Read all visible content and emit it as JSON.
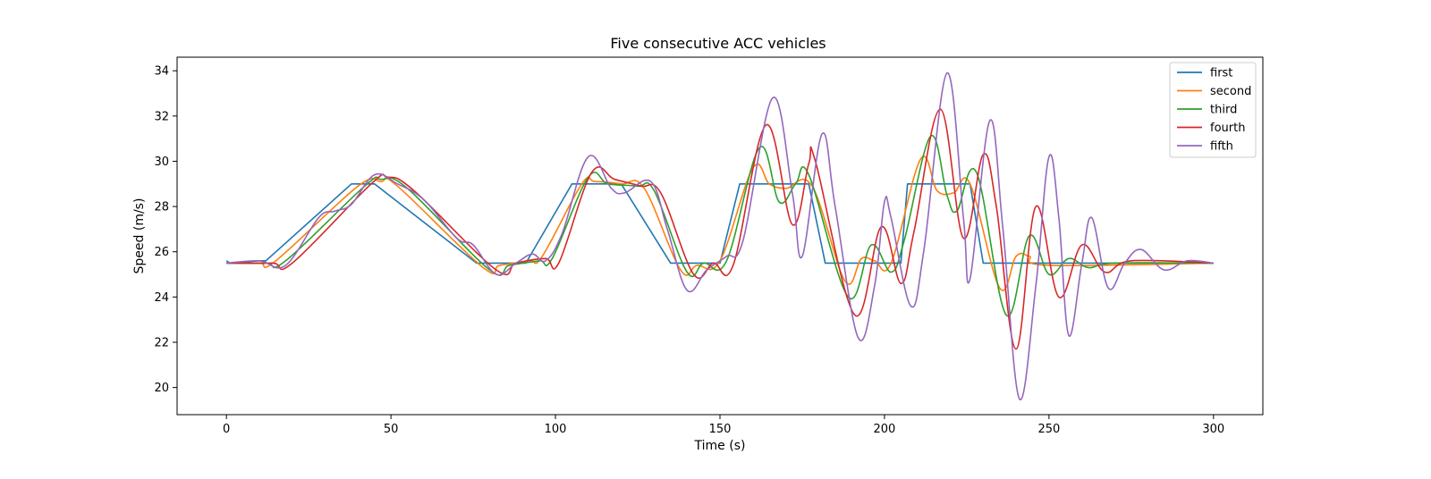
{
  "chart_data": {
    "type": "line",
    "title": "Five consecutive ACC vehicles",
    "xlabel": "Time (s)",
    "ylabel": "Speed (m/s)",
    "xlim": [
      -15,
      315
    ],
    "ylim": [
      18.8,
      34.6
    ],
    "xticks": [
      0,
      50,
      100,
      150,
      200,
      250,
      300
    ],
    "yticks": [
      20,
      22,
      24,
      26,
      28,
      30,
      32,
      34
    ],
    "grid": false,
    "legend_position": "top-right",
    "series": [
      {
        "name": "first",
        "color": "#1f77b4",
        "points": [
          [
            0,
            25.6
          ],
          [
            1,
            25.5
          ],
          [
            10,
            25.6
          ],
          [
            12,
            25.6
          ],
          [
            38,
            29
          ],
          [
            45,
            29
          ],
          [
            76,
            25.5
          ],
          [
            78,
            25.5
          ],
          [
            91,
            25.5
          ],
          [
            105,
            29
          ],
          [
            120,
            29
          ],
          [
            135,
            25.5
          ],
          [
            150,
            25.5
          ],
          [
            156,
            29
          ],
          [
            177,
            29
          ],
          [
            182,
            25.5
          ],
          [
            205,
            25.5
          ],
          [
            207,
            29
          ],
          [
            226,
            29
          ],
          [
            230,
            25.5
          ],
          [
            300,
            25.5
          ]
        ]
      },
      {
        "name": "second",
        "color": "#ff7f0e",
        "points": [
          [
            0,
            25.5
          ],
          [
            10,
            25.5
          ],
          [
            15,
            25.6
          ],
          [
            40,
            28.9
          ],
          [
            47,
            29.1
          ],
          [
            52,
            28.9
          ],
          [
            78,
            25.3
          ],
          [
            83,
            25.4
          ],
          [
            92,
            25.6
          ],
          [
            96,
            25.8
          ],
          [
            108,
            29
          ],
          [
            112,
            29.1
          ],
          [
            120,
            29
          ],
          [
            127,
            28.8
          ],
          [
            138,
            25.2
          ],
          [
            143,
            25.4
          ],
          [
            150,
            25.6
          ],
          [
            160,
            29.7
          ],
          [
            165,
            29
          ],
          [
            170,
            28.8
          ],
          [
            178,
            28.9
          ],
          [
            188,
            24.7
          ],
          [
            193,
            25.7
          ],
          [
            197,
            25.6
          ],
          [
            202,
            25.5
          ],
          [
            211,
            30.1
          ],
          [
            216,
            28.7
          ],
          [
            221,
            28.6
          ],
          [
            226,
            29
          ],
          [
            235,
            24.4
          ],
          [
            240,
            25.8
          ],
          [
            244,
            25.8
          ],
          [
            250,
            25.4
          ],
          [
            300,
            25.5
          ]
        ]
      },
      {
        "name": "third",
        "color": "#2ca02c",
        "points": [
          [
            0,
            25.5
          ],
          [
            12,
            25.5
          ],
          [
            18,
            25.6
          ],
          [
            42,
            28.9
          ],
          [
            47,
            29.2
          ],
          [
            55,
            28.8
          ],
          [
            80,
            25.2
          ],
          [
            86,
            25.4
          ],
          [
            95,
            25.6
          ],
          [
            99,
            25.7
          ],
          [
            110,
            29.3
          ],
          [
            116,
            29
          ],
          [
            125,
            28.9
          ],
          [
            130,
            28.7
          ],
          [
            140,
            25.1
          ],
          [
            145,
            25.5
          ],
          [
            152,
            25.6
          ],
          [
            162,
            30.6
          ],
          [
            168,
            28.2
          ],
          [
            173,
            29
          ],
          [
            177,
            29.4
          ],
          [
            189,
            24
          ],
          [
            196,
            26.3
          ],
          [
            202,
            25.1
          ],
          [
            206,
            26.5
          ],
          [
            214,
            31.1
          ],
          [
            219,
            28.5
          ],
          [
            222,
            27.8
          ],
          [
            228,
            29.5
          ],
          [
            237,
            23.2
          ],
          [
            244,
            26.7
          ],
          [
            250,
            25
          ],
          [
            256,
            25.7
          ],
          [
            262,
            25.3
          ],
          [
            270,
            25.5
          ],
          [
            300,
            25.5
          ]
        ]
      },
      {
        "name": "fourth",
        "color": "#d62728",
        "points": [
          [
            0,
            25.5
          ],
          [
            14,
            25.5
          ],
          [
            20,
            25.5
          ],
          [
            44,
            29
          ],
          [
            49,
            29.3
          ],
          [
            57,
            28.7
          ],
          [
            82,
            25.2
          ],
          [
            88,
            25.5
          ],
          [
            97,
            25.7
          ],
          [
            101,
            25.5
          ],
          [
            111,
            29.5
          ],
          [
            118,
            29.2
          ],
          [
            126,
            28.9
          ],
          [
            132,
            28.6
          ],
          [
            142,
            25
          ],
          [
            148,
            25.5
          ],
          [
            154,
            25.4
          ],
          [
            164,
            31.6
          ],
          [
            172,
            27.2
          ],
          [
            177,
            29.9
          ],
          [
            179,
            30
          ],
          [
            191,
            23.2
          ],
          [
            199,
            27.1
          ],
          [
            205,
            24.6
          ],
          [
            209,
            26.9
          ],
          [
            217,
            32.3
          ],
          [
            224,
            26.6
          ],
          [
            230,
            30.3
          ],
          [
            234,
            28
          ],
          [
            240,
            21.7
          ],
          [
            246,
            28
          ],
          [
            253,
            24
          ],
          [
            260,
            26.3
          ],
          [
            267,
            25.1
          ],
          [
            275,
            25.6
          ],
          [
            300,
            25.5
          ]
        ]
      },
      {
        "name": "fifth",
        "color": "#9467bd",
        "points": [
          [
            0,
            25.5
          ],
          [
            10,
            25.6
          ],
          [
            18,
            25.4
          ],
          [
            28,
            27.5
          ],
          [
            33,
            27.8
          ],
          [
            38,
            28.1
          ],
          [
            45,
            29.4
          ],
          [
            52,
            29
          ],
          [
            60,
            28.3
          ],
          [
            70,
            26.6
          ],
          [
            75,
            26.3
          ],
          [
            82,
            25
          ],
          [
            88,
            25.5
          ],
          [
            93,
            25.9
          ],
          [
            97,
            25.6
          ],
          [
            102,
            26.8
          ],
          [
            110,
            30.2
          ],
          [
            117,
            28.8
          ],
          [
            121,
            28.6
          ],
          [
            129,
            29.1
          ],
          [
            134,
            27
          ],
          [
            140,
            24.3
          ],
          [
            146,
            25.2
          ],
          [
            152,
            25.8
          ],
          [
            157,
            26.5
          ],
          [
            166,
            32.8
          ],
          [
            172,
            28.6
          ],
          [
            175,
            25.8
          ],
          [
            181,
            31.2
          ],
          [
            185,
            28
          ],
          [
            192,
            22.2
          ],
          [
            197,
            24.5
          ],
          [
            200,
            28.2
          ],
          [
            202,
            27.5
          ],
          [
            208,
            23.6
          ],
          [
            212,
            26.1
          ],
          [
            219,
            33.9
          ],
          [
            224,
            27.5
          ],
          [
            226,
            24.8
          ],
          [
            232,
            31.8
          ],
          [
            236,
            27
          ],
          [
            241,
            19.5
          ],
          [
            246,
            24.5
          ],
          [
            250,
            30.2
          ],
          [
            253,
            27.5
          ],
          [
            256,
            22.3
          ],
          [
            260,
            25.5
          ],
          [
            263,
            27.5
          ],
          [
            268,
            24.4
          ],
          [
            273,
            25.5
          ],
          [
            278,
            26.1
          ],
          [
            285,
            25.2
          ],
          [
            292,
            25.6
          ],
          [
            300,
            25.5
          ]
        ]
      }
    ]
  }
}
